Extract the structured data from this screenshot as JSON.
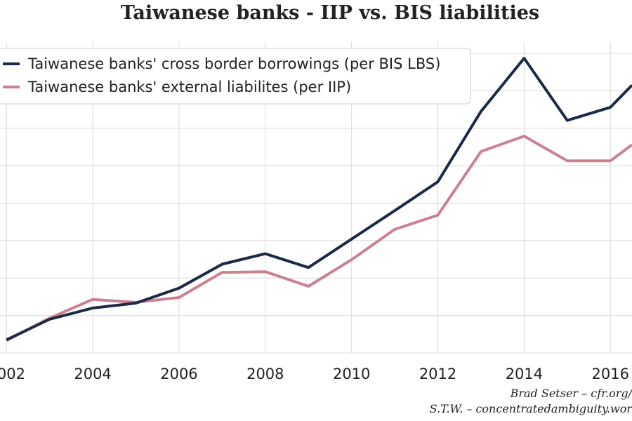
{
  "chart_data": {
    "type": "line",
    "title": "Taiwanese banks - IIP vs. BIS liabilities",
    "xlabel": "",
    "ylabel": "",
    "x_tick_labels": [
      "2002",
      "2004",
      "2006",
      "2008",
      "2010",
      "2012",
      "2014",
      "2016"
    ],
    "x": [
      2002,
      2003,
      2004,
      2005,
      2006,
      2007,
      2008,
      2009,
      2010,
      2011,
      2012,
      2013,
      2014,
      2015,
      2016,
      2016.5
    ],
    "ylim": [
      0,
      8.3
    ],
    "xlim": [
      2001.85,
      2016.5
    ],
    "grid": true,
    "legend_position": "top-left",
    "series": [
      {
        "name": "Taiwanese banks' cross border borrowings (per BIS LBS)",
        "color": "#1b2a47",
        "values": [
          0.35,
          0.9,
          1.2,
          1.33,
          1.73,
          2.37,
          2.65,
          2.28,
          3.04,
          3.8,
          4.57,
          6.45,
          7.87,
          6.21,
          6.56,
          7.15
        ]
      },
      {
        "name": "Taiwanese banks' external liabilites (per IIP)",
        "color": "#cc8193",
        "values": [
          0.33,
          0.93,
          1.43,
          1.35,
          1.48,
          2.15,
          2.17,
          1.78,
          2.49,
          3.3,
          3.68,
          5.38,
          5.79,
          5.13,
          5.13,
          5.56
        ]
      }
    ]
  },
  "credits": {
    "line1": "Brad Setser – cfr.org/",
    "line2": "S.T.W. – concentratedambiguity.wor"
  }
}
